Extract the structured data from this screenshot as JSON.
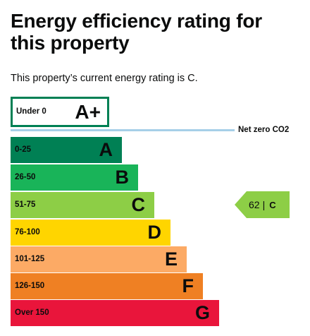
{
  "page": {
    "title": "Energy efficiency rating for this property",
    "subtitle": "This property’s current energy rating is C."
  },
  "chart": {
    "net_zero_label": "Net zero CO2",
    "top_band": {
      "range": "Under 0",
      "letter": "A+",
      "border_color": "#008054"
    },
    "bands": [
      {
        "range": "0-25",
        "letter": "A",
        "color": "#008054"
      },
      {
        "range": "26-50",
        "letter": "B",
        "color": "#19b459"
      },
      {
        "range": "51-75",
        "letter": "C",
        "color": "#8dce46"
      },
      {
        "range": "76-100",
        "letter": "D",
        "color": "#ffd500"
      },
      {
        "range": "101-125",
        "letter": "E",
        "color": "#fcaa65"
      },
      {
        "range": "126-150",
        "letter": "F",
        "color": "#ef8023"
      },
      {
        "range": "Over 150",
        "letter": "G",
        "color": "#e9153b"
      }
    ],
    "current": {
      "score": "62",
      "separator": "|",
      "letter": "C",
      "color": "#8dce46"
    }
  }
}
